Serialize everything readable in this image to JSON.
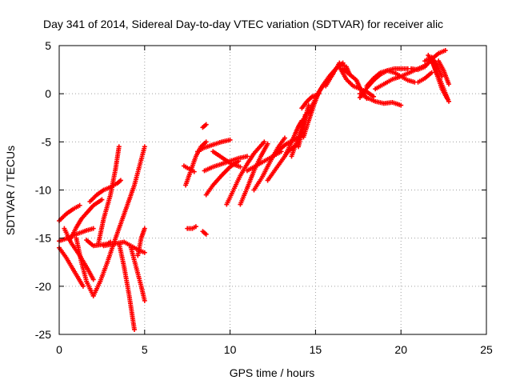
{
  "chart_data": {
    "type": "scatter",
    "title": "Day 341 of 2014, Sidereal Day-to-day VTEC variation (SDTVAR) for receiver alic",
    "xlabel": "GPS time / hours",
    "ylabel": "SDTVAR / TECUs",
    "xlim": [
      0,
      25
    ],
    "ylim": [
      -25,
      5
    ],
    "xticks": [
      "0",
      "5",
      "10",
      "15",
      "20",
      "25"
    ],
    "yticks": [
      "-25",
      "-20",
      "-15",
      "-10",
      "-5",
      "0",
      "5"
    ],
    "grid": true,
    "marker": "plus",
    "color": "#ff0000",
    "tracks": [
      {
        "x": [
          0.0,
          0.4,
          0.8,
          1.2
        ],
        "y": [
          -13.2,
          -12.5,
          -12.0,
          -11.6
        ]
      },
      {
        "x": [
          0.0,
          0.5,
          1.0,
          1.6,
          2.0
        ],
        "y": [
          -15.3,
          -15.0,
          -14.6,
          -14.2,
          -14.0
        ]
      },
      {
        "x": [
          0.0,
          0.4,
          0.9,
          1.4
        ],
        "y": [
          -16.0,
          -17.0,
          -18.5,
          -20.0
        ]
      },
      {
        "x": [
          0.3,
          0.7,
          1.2,
          1.6,
          2.0
        ],
        "y": [
          -14.0,
          -15.5,
          -16.8,
          -18.0,
          -19.3
        ]
      },
      {
        "x": [
          0.6,
          0.8,
          1.0,
          1.3,
          1.6,
          2.0,
          2.5
        ],
        "y": [
          -15.2,
          -14.6,
          -13.9,
          -13.0,
          -12.4,
          -11.6,
          -11.0
        ]
      },
      {
        "x": [
          1.6,
          2.0,
          2.4,
          2.8,
          3.0
        ],
        "y": [
          -15.2,
          -15.8,
          -15.7,
          -15.6,
          -15.4
        ]
      },
      {
        "x": [
          1.0,
          1.3,
          1.6,
          2.0
        ],
        "y": [
          -15.0,
          -17.5,
          -19.5,
          -21.0
        ]
      },
      {
        "x": [
          1.8,
          2.2,
          2.6,
          3.0,
          3.4,
          3.6
        ],
        "y": [
          -11.2,
          -10.5,
          -10.0,
          -9.7,
          -9.3,
          -9.0
        ]
      },
      {
        "x": [
          2.3,
          2.6,
          3.0,
          3.3,
          3.5
        ],
        "y": [
          -15.5,
          -13.0,
          -10.5,
          -7.8,
          -5.5
        ]
      },
      {
        "x": [
          2.0,
          2.4,
          2.8,
          3.2,
          3.6,
          4.0,
          4.4,
          5.0
        ],
        "y": [
          -21.0,
          -19.5,
          -17.6,
          -15.5,
          -13.5,
          -11.5,
          -9.5,
          -5.5
        ]
      },
      {
        "x": [
          2.6,
          3.2,
          3.8,
          4.2,
          4.6,
          5.0
        ],
        "y": [
          -15.8,
          -15.6,
          -15.4,
          -15.8,
          -16.2,
          -16.5
        ]
      },
      {
        "x": [
          3.5,
          3.8,
          4.1,
          4.4
        ],
        "y": [
          -15.5,
          -18.0,
          -21.0,
          -24.5
        ]
      },
      {
        "x": [
          4.2,
          4.5,
          4.8,
          5.0
        ],
        "y": [
          -16.0,
          -18.0,
          -20.0,
          -21.5
        ]
      },
      {
        "x": [
          4.6,
          4.8,
          5.0
        ],
        "y": [
          -16.8,
          -15.0,
          -14.0
        ]
      },
      {
        "x": [
          7.4,
          7.7,
          8.0,
          8.3,
          8.6
        ],
        "y": [
          -9.5,
          -8.0,
          -6.5,
          -5.5,
          -5.0
        ]
      },
      {
        "x": [
          7.3,
          7.6,
          7.9
        ],
        "y": [
          -7.5,
          -7.8,
          -8.1
        ]
      },
      {
        "x": [
          7.5,
          7.8,
          8.0
        ],
        "y": [
          -14.0,
          -14.0,
          -13.8
        ]
      },
      {
        "x": [
          8.4,
          8.6
        ],
        "y": [
          -14.3,
          -14.6
        ]
      },
      {
        "x": [
          8.4,
          8.6
        ],
        "y": [
          -3.5,
          -3.2
        ]
      },
      {
        "x": [
          8.1,
          8.5,
          9.0,
          9.5,
          10.0
        ],
        "y": [
          -6.0,
          -5.6,
          -5.3,
          -5.0,
          -4.8
        ]
      },
      {
        "x": [
          8.5,
          9.0,
          9.5,
          10.0,
          10.5,
          11.0
        ],
        "y": [
          -8.0,
          -7.6,
          -7.3,
          -7.0,
          -6.7,
          -6.5
        ]
      },
      {
        "x": [
          8.6,
          9.0,
          9.5,
          10.0,
          10.5
        ],
        "y": [
          -10.5,
          -9.5,
          -8.5,
          -7.6,
          -7.0
        ]
      },
      {
        "x": [
          9.0,
          9.5,
          10.0,
          10.6
        ],
        "y": [
          -6.0,
          -6.6,
          -7.2,
          -7.6
        ]
      },
      {
        "x": [
          9.8,
          10.2,
          10.6,
          11.0,
          11.4,
          12.0
        ],
        "y": [
          -11.5,
          -10.0,
          -8.5,
          -7.3,
          -6.2,
          -5.0
        ]
      },
      {
        "x": [
          10.6,
          11.0,
          11.4,
          11.8,
          12.2
        ],
        "y": [
          -11.5,
          -9.8,
          -8.0,
          -6.5,
          -5.2
        ]
      },
      {
        "x": [
          11.0,
          11.5,
          12.0,
          12.5,
          13.0
        ],
        "y": [
          -8.0,
          -7.5,
          -7.0,
          -6.5,
          -6.0
        ]
      },
      {
        "x": [
          11.4,
          11.9,
          12.3,
          12.8,
          13.2
        ],
        "y": [
          -10.0,
          -8.6,
          -7.2,
          -5.6,
          -4.6
        ]
      },
      {
        "x": [
          12.2,
          12.6,
          13.0,
          13.4,
          13.8
        ],
        "y": [
          -9.0,
          -8.0,
          -7.0,
          -6.0,
          -5.4
        ]
      },
      {
        "x": [
          12.5,
          12.9,
          13.3,
          13.7,
          14.1
        ],
        "y": [
          -6.5,
          -5.8,
          -5.2,
          -4.8,
          -4.5
        ]
      },
      {
        "x": [
          13.2,
          13.5,
          13.8,
          14.0,
          14.2
        ],
        "y": [
          -6.5,
          -5.4,
          -4.2,
          -3.4,
          -2.8
        ]
      },
      {
        "x": [
          13.6,
          13.9,
          14.2,
          14.4
        ],
        "y": [
          -6.5,
          -5.0,
          -3.5,
          -2.2
        ]
      },
      {
        "x": [
          14.0,
          14.2,
          14.4,
          14.6
        ],
        "y": [
          -5.5,
          -4.0,
          -2.5,
          -1.2
        ]
      },
      {
        "x": [
          14.3,
          14.6,
          14.9,
          15.2,
          15.6,
          16.0
        ],
        "y": [
          -4.5,
          -2.8,
          -1.2,
          0.2,
          1.2,
          2.0
        ]
      },
      {
        "x": [
          14.6,
          15.0,
          15.4,
          15.8,
          16.2,
          16.6
        ],
        "y": [
          -2.0,
          -0.5,
          0.8,
          1.8,
          2.6,
          3.2
        ]
      },
      {
        "x": [
          14.2,
          14.5,
          14.8,
          15.2
        ],
        "y": [
          -1.5,
          -0.8,
          -0.3,
          0.0
        ]
      },
      {
        "x": [
          15.6,
          16.0,
          16.4,
          16.8,
          17.0
        ],
        "y": [
          0.8,
          2.0,
          3.2,
          2.8,
          2.0
        ]
      },
      {
        "x": [
          16.4,
          16.8,
          17.2,
          17.6,
          18.0,
          18.4
        ],
        "y": [
          2.8,
          1.5,
          0.8,
          0.5,
          0.2,
          -0.3
        ]
      },
      {
        "x": [
          16.6,
          17.0,
          17.4,
          17.6,
          18.0
        ],
        "y": [
          2.6,
          2.0,
          1.4,
          0.6,
          -0.5
        ]
      },
      {
        "x": [
          17.6,
          18.0,
          18.5,
          19.0,
          19.5,
          20.0
        ],
        "y": [
          0.0,
          -0.4,
          -0.8,
          -1.0,
          -0.9,
          -1.2
        ]
      },
      {
        "x": [
          17.6,
          18.0,
          18.4,
          18.8,
          19.2,
          19.6,
          20.0,
          20.4
        ],
        "y": [
          -0.4,
          0.6,
          1.4,
          2.0,
          2.4,
          2.6,
          2.6,
          2.6
        ]
      },
      {
        "x": [
          18.0,
          18.4,
          18.8,
          19.2,
          19.6,
          20.0,
          20.4,
          20.8
        ],
        "y": [
          0.8,
          1.6,
          2.2,
          2.4,
          2.2,
          1.8,
          1.4,
          1.2
        ]
      },
      {
        "x": [
          18.5,
          19.0,
          19.5,
          20.0,
          20.5,
          21.0,
          21.5
        ],
        "y": [
          0.5,
          1.0,
          1.5,
          1.8,
          2.2,
          2.6,
          3.0
        ]
      },
      {
        "x": [
          20.6,
          21.0,
          21.4,
          21.8,
          22.2,
          22.6
        ],
        "y": [
          2.6,
          2.5,
          2.8,
          3.6,
          4.2,
          4.5
        ]
      },
      {
        "x": [
          21.4,
          21.8,
          22.1,
          22.4
        ],
        "y": [
          3.4,
          3.8,
          3.0,
          1.8
        ]
      },
      {
        "x": [
          21.8,
          22.1,
          22.4,
          22.7
        ],
        "y": [
          3.6,
          2.0,
          0.5,
          -0.5
        ]
      },
      {
        "x": [
          21.6,
          21.9,
          22.2,
          22.5,
          22.8
        ],
        "y": [
          4.0,
          3.0,
          1.8,
          0.5,
          -0.8
        ]
      },
      {
        "x": [
          22.2,
          22.5,
          22.8
        ],
        "y": [
          3.4,
          2.4,
          1.0
        ]
      },
      {
        "x": [
          21.0,
          21.4,
          21.8
        ],
        "y": [
          1.2,
          1.6,
          2.2
        ]
      }
    ]
  }
}
